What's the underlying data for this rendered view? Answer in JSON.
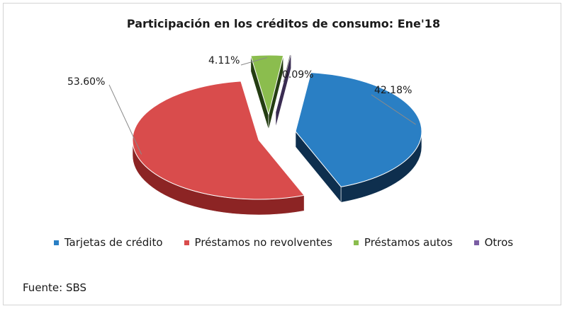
{
  "chart_data": {
    "type": "pie",
    "title": "Participación en los créditos de consumo: Ene'18",
    "categories": [
      "Tarjetas de crédito",
      "Préstamos no revolventes",
      "Préstamos autos",
      "Otros"
    ],
    "values": [
      42.18,
      53.6,
      4.11,
      0.09
    ],
    "value_labels": [
      "42.18%",
      "53.60%",
      "4.11%",
      "0.09%"
    ],
    "colors": [
      "#2a7fc4",
      "#d94c4c",
      "#8bbd4e",
      "#7a5da3"
    ],
    "dark_colors": [
      "#0e2f4e",
      "#8c2424",
      "#243d12",
      "#3a2c52"
    ],
    "exploded": true,
    "three_d": true,
    "legend_position": "bottom"
  },
  "footer": {
    "source": "Fuente: SBS"
  }
}
